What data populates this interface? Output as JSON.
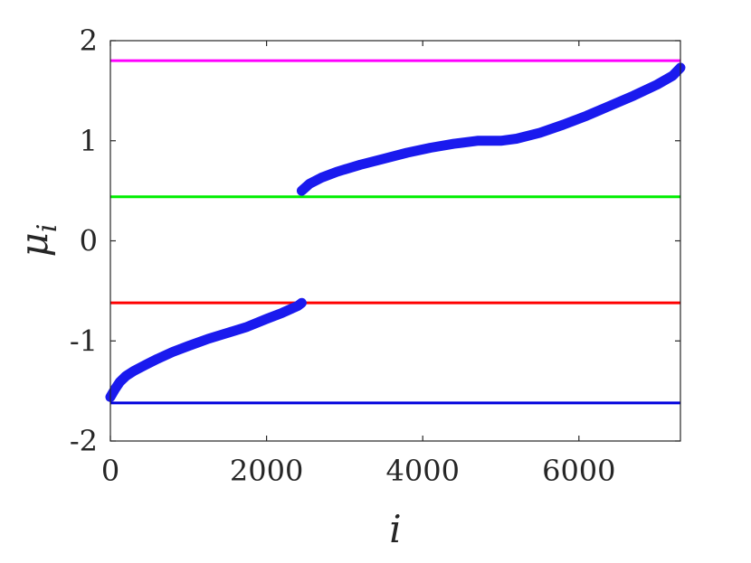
{
  "chart_data": {
    "type": "line",
    "title": "",
    "xlabel": "i",
    "ylabel": "μ",
    "ylabel_subscript": "i",
    "xlim": [
      0,
      7300
    ],
    "ylim": [
      -2,
      2
    ],
    "xticks": [
      0,
      2000,
      4000,
      6000
    ],
    "xtick_labels": [
      "0",
      "2000",
      "4000",
      "6000"
    ],
    "yticks": [
      -2,
      -1,
      0,
      1,
      2
    ],
    "ytick_labels": [
      "-2",
      "-1",
      "0",
      "1",
      "2"
    ],
    "grid": false,
    "reference_lines": [
      {
        "y": 1.8,
        "color": "#ff00ff"
      },
      {
        "y": 0.44,
        "color": "#00ee00"
      },
      {
        "y": -0.62,
        "color": "#ff0000"
      },
      {
        "y": -1.62,
        "color": "#0000dd"
      }
    ],
    "series": [
      {
        "color": "#1a1aee",
        "x": [
          0,
          60,
          120,
          200,
          300,
          450,
          600,
          800,
          1000,
          1250,
          1500,
          1750,
          2000,
          2200,
          2400,
          2450
        ],
        "y": [
          -1.56,
          -1.48,
          -1.41,
          -1.35,
          -1.3,
          -1.24,
          -1.18,
          -1.11,
          -1.05,
          -0.98,
          -0.92,
          -0.86,
          -0.78,
          -0.72,
          -0.65,
          -0.62
        ]
      },
      {
        "color": "#1a1aee",
        "x": [
          2450,
          2550,
          2700,
          2900,
          3200,
          3500,
          3800,
          4100,
          4400,
          4700,
          5000,
          5200,
          5500,
          5800,
          6100,
          6400,
          6700,
          7000,
          7200,
          7300
        ],
        "y": [
          0.5,
          0.57,
          0.63,
          0.69,
          0.76,
          0.82,
          0.88,
          0.93,
          0.97,
          1.0,
          1.0,
          1.02,
          1.08,
          1.16,
          1.25,
          1.35,
          1.45,
          1.56,
          1.65,
          1.73
        ]
      }
    ]
  }
}
